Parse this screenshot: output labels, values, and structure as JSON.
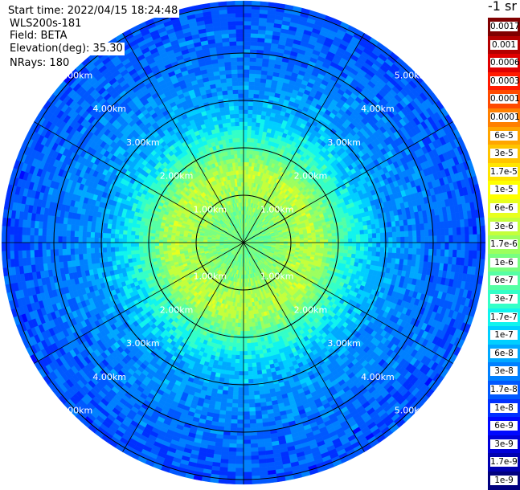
{
  "info": {
    "start_time": "Start time: 2022/04/15 18:24:48",
    "instrument": "WLS200s-181",
    "field": "Field: BETA",
    "elevation": "Elevation(deg): 35.30",
    "nrays": "NRays: 180"
  },
  "units_label": "-1 sr",
  "chart_data": {
    "type": "heatmap",
    "title": "",
    "projection": "polar (PPI scan)",
    "field": "BETA",
    "elevation_deg": 35.3,
    "n_rays": 180,
    "range_rings_km": [
      1,
      2,
      3,
      4,
      5
    ],
    "range_ring_labels": [
      "1.00km",
      "2.00km",
      "3.00km",
      "4.00km",
      "5.00km"
    ],
    "max_range_km": 5.1,
    "spokes_deg": [
      0,
      30,
      60,
      90,
      120,
      150,
      180,
      210,
      240,
      270,
      300,
      330
    ],
    "radial_profile_log10_beta": [
      {
        "range_km": 0.0,
        "value": -6.05
      },
      {
        "range_km": 0.5,
        "value": -6.05
      },
      {
        "range_km": 1.0,
        "value": -5.75
      },
      {
        "range_km": 1.5,
        "value": -5.55
      },
      {
        "range_km": 2.0,
        "value": -6.3
      },
      {
        "range_km": 2.5,
        "value": -6.9
      },
      {
        "range_km": 3.0,
        "value": -7.3
      },
      {
        "range_km": 4.0,
        "value": -7.6
      },
      {
        "range_km": 5.0,
        "value": -7.8
      }
    ],
    "colorbar": {
      "labels": [
        "0.0017",
        "0.001",
        "0.0006",
        "0.0003",
        "0.00017",
        "0.0001",
        "6e-5",
        "3e-5",
        "1.7e-5",
        "1e-5",
        "6e-6",
        "3e-6",
        "1.7e-6",
        "1e-6",
        "6e-7",
        "3e-7",
        "1.7e-7",
        "1e-7",
        "6e-8",
        "3e-8",
        "1.7e-8",
        "1e-8",
        "6e-9",
        "3e-9",
        "1.7e-9",
        "1e-9"
      ],
      "colors": [
        "#800000",
        "#b40000",
        "#e00000",
        "#ff1a00",
        "#ff4a00",
        "#ff8000",
        "#ffa500",
        "#ffc400",
        "#ffe400",
        "#ffff00",
        "#e8ff1e",
        "#c4ff3b",
        "#9cff5e",
        "#78ff80",
        "#55ffa4",
        "#33ffc8",
        "#10f4ee",
        "#00cfff",
        "#00a8ff",
        "#0080ff",
        "#0058ff",
        "#0030ff",
        "#0008ff",
        "#0000d8",
        "#0000b0",
        "#00007f"
      ]
    }
  }
}
